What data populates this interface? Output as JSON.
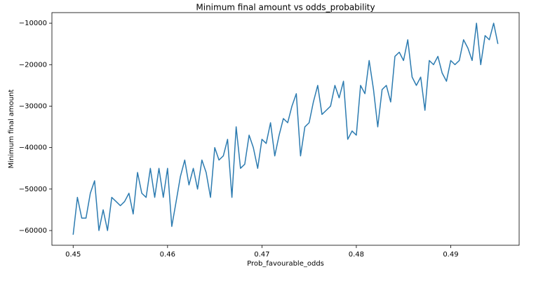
{
  "chart_data": {
    "type": "line",
    "title": "Minimum final amount vs odds_probability",
    "xlabel": "Prob_favourable_odds",
    "ylabel": "Minimum final amount",
    "x": [
      0.45,
      0.45045,
      0.45091,
      0.45136,
      0.45182,
      0.45227,
      0.45273,
      0.45318,
      0.45364,
      0.45409,
      0.45455,
      0.455,
      0.45545,
      0.45591,
      0.45636,
      0.45682,
      0.45727,
      0.45773,
      0.45818,
      0.45864,
      0.45909,
      0.45955,
      0.46,
      0.46045,
      0.46091,
      0.46136,
      0.46182,
      0.46227,
      0.46273,
      0.46318,
      0.46364,
      0.46409,
      0.46455,
      0.465,
      0.46545,
      0.46591,
      0.46636,
      0.46682,
      0.46727,
      0.46773,
      0.46818,
      0.46864,
      0.46909,
      0.46955,
      0.47,
      0.47045,
      0.47091,
      0.47136,
      0.47182,
      0.47227,
      0.47273,
      0.47318,
      0.47364,
      0.47409,
      0.47455,
      0.475,
      0.47545,
      0.47591,
      0.47636,
      0.47682,
      0.47727,
      0.47773,
      0.47818,
      0.47864,
      0.47909,
      0.47955,
      0.48,
      0.48045,
      0.48091,
      0.48136,
      0.48182,
      0.48227,
      0.48273,
      0.48318,
      0.48364,
      0.48409,
      0.48455,
      0.485,
      0.48545,
      0.48591,
      0.48636,
      0.48682,
      0.48727,
      0.48773,
      0.48818,
      0.48864,
      0.48909,
      0.48955,
      0.49,
      0.49045,
      0.49091,
      0.49136,
      0.49182,
      0.49227,
      0.49273,
      0.49318,
      0.49364,
      0.49409,
      0.49455,
      0.495
    ],
    "series": [
      {
        "name": "Minimum final amount",
        "color": "#2c7bb0",
        "values": [
          -61000,
          -52000,
          -57000,
          -57000,
          -51000,
          -48000,
          -60000,
          -55000,
          -60000,
          -52000,
          -53000,
          -54000,
          -53000,
          -51000,
          -56000,
          -46000,
          -51000,
          -52000,
          -45000,
          -52000,
          -45000,
          -52000,
          -45000,
          -59000,
          -53000,
          -47000,
          -43000,
          -49000,
          -45000,
          -50000,
          -43000,
          -46000,
          -52000,
          -40000,
          -43000,
          -42000,
          -38000,
          -52000,
          -35000,
          -45000,
          -44000,
          -37000,
          -40000,
          -45000,
          -38000,
          -39000,
          -34000,
          -42000,
          -37000,
          -33000,
          -34000,
          -30000,
          -27000,
          -42000,
          -35000,
          -34000,
          -29000,
          -25000,
          -32000,
          -31000,
          -30000,
          -25000,
          -28000,
          -24000,
          -38000,
          -36000,
          -37000,
          -25000,
          -27000,
          -19000,
          -26000,
          -35000,
          -26000,
          -25000,
          -29000,
          -18000,
          -17000,
          -19000,
          -14000,
          -23000,
          -25000,
          -23000,
          -31000,
          -19000,
          -20000,
          -18000,
          -22000,
          -24000,
          -19000,
          -20000,
          -19000,
          -14000,
          -16000,
          -19000,
          -10000,
          -20000,
          -13000,
          -14000,
          -10000,
          -15000
        ]
      }
    ],
    "xlim": [
      0.44775,
      0.49725
    ],
    "xticks": [
      0.45,
      0.46,
      0.47,
      0.48,
      0.49
    ],
    "ylim": [
      -63550,
      -7450
    ],
    "yticks": [
      {
        "value": -60000,
        "label": "−60000"
      },
      {
        "value": -50000,
        "label": "−50000"
      },
      {
        "value": -40000,
        "label": "−40000"
      },
      {
        "value": -30000,
        "label": "−30000"
      },
      {
        "value": -20000,
        "label": "−20000"
      },
      {
        "value": -10000,
        "label": "−10000"
      }
    ],
    "grid": false
  }
}
